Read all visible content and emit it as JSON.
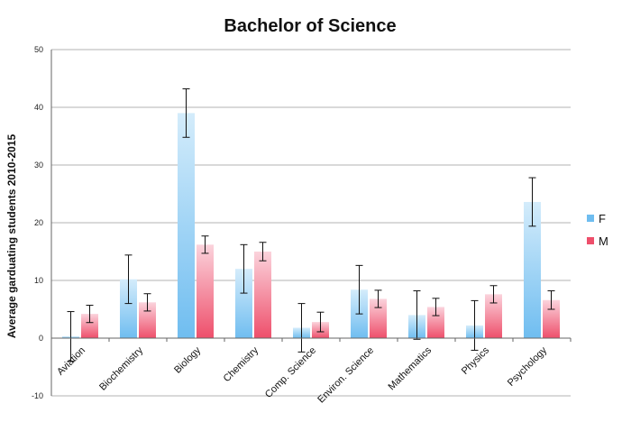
{
  "chart_data": {
    "type": "bar",
    "title": "Bachelor of Science",
    "xlabel": "",
    "ylabel": "Average garduating students 2010-2015",
    "ylim": [
      -10,
      50
    ],
    "yticks": [
      -10,
      0,
      10,
      20,
      30,
      40,
      50
    ],
    "grid": true,
    "legend_position": "right",
    "categories": [
      "Aviation",
      "Biochemistry",
      "Biology",
      "Chemistry",
      "Comp. Science",
      "Environ. Science",
      "Mathematics",
      "Physics",
      "Psychology"
    ],
    "series": [
      {
        "name": "F",
        "color": "#6fbdf0",
        "color_light": "#d4ecfb",
        "values": [
          0.3,
          10.2,
          39.0,
          12.0,
          1.8,
          8.4,
          4.0,
          2.2,
          23.6
        ],
        "errors": [
          4.3,
          4.2,
          4.2,
          4.2,
          4.2,
          4.2,
          4.2,
          4.3,
          4.2
        ]
      },
      {
        "name": "M",
        "color": "#ee4f6b",
        "color_light": "#fbd3dc",
        "values": [
          4.2,
          6.2,
          16.2,
          15.0,
          2.8,
          6.8,
          5.4,
          7.6,
          6.6
        ],
        "errors": [
          1.5,
          1.5,
          1.5,
          1.6,
          1.7,
          1.5,
          1.5,
          1.5,
          1.6
        ]
      }
    ]
  }
}
